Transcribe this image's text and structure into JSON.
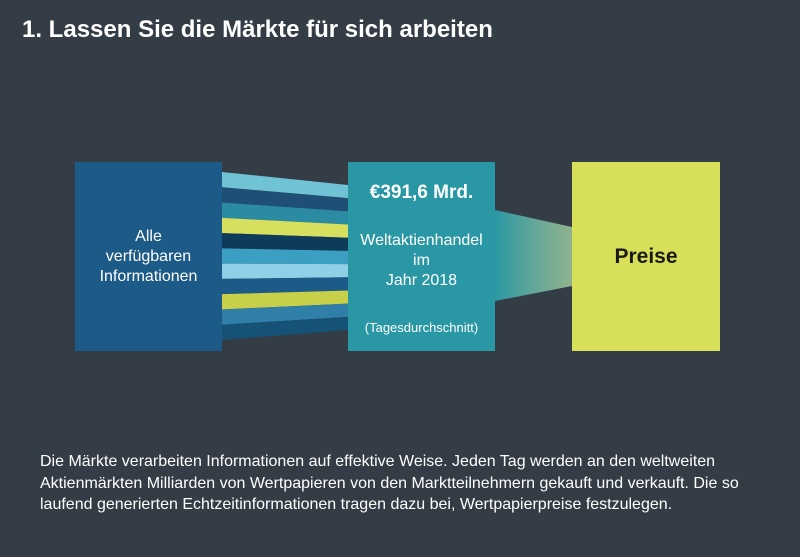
{
  "title": "1. Lassen Sie die Märkte für sich arbeiten",
  "left_box": {
    "label": "Alle\nverfügbaren\nInformationen"
  },
  "middle_box": {
    "amount": "€391,6 Mrd.",
    "desc_line1": "Weltaktienhandel",
    "desc_line2": "im",
    "desc_line3": "Jahr 2018",
    "note": "(Tagesdurchschnitt)"
  },
  "right_box": {
    "label": "Preise"
  },
  "colors": {
    "background": "#343c46",
    "info_box": "#1c5a88",
    "volume_box": "#2a97a4",
    "prices_box": "#d8e05a",
    "stream_colors": [
      "#6fc3d4",
      "#1f4f74",
      "#2a8ba3",
      "#d7df5e",
      "#0f3b5a",
      "#3a9fc0",
      "#8fd0e6",
      "#1c5a88",
      "#c8cf48",
      "#2f7fa8",
      "#155276"
    ]
  },
  "paragraph": "Die Märkte verarbeiten Informationen auf effektive Weise. Jeden Tag werden an den weltweiten Aktienmärkten Milliarden von Wertpapieren von den Marktteilnehmern gekauft und verkauft. Die so laufend generierten Echtzeitinformationen tragen dazu bei, Wertpapierpreise festzulegen."
}
